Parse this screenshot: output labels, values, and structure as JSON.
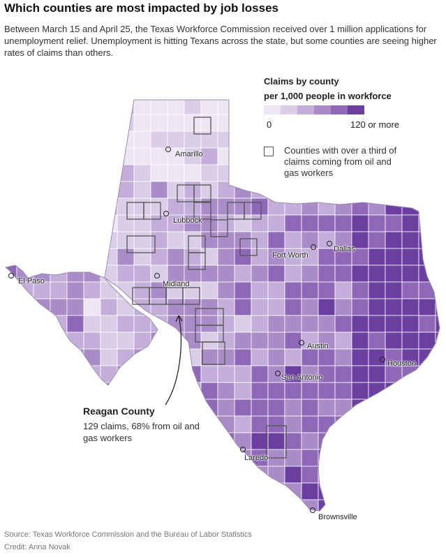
{
  "header": {
    "title": "Which counties are most impacted by job losses",
    "subtitle": "Between March 15 and April 25, the Texas Workforce Commission received over 1 million applications for unemployment relief. Unemployment is hitting Texans across the state, but some counties are seeing higher rates of claims than others."
  },
  "legend": {
    "title_line1": "Claims by county",
    "title_line2": "per 1,000 people in workforce",
    "min_label": "0",
    "max_label": "120 or more",
    "colors": [
      "#ece7f2",
      "#d9cde8",
      "#c2aed9",
      "#a98bc8",
      "#8f68b7",
      "#6b3fa0"
    ],
    "oil_gas_label": "Counties with over a third of claims coming from oil and gas workers"
  },
  "cities": [
    {
      "name": "Amarillo"
    },
    {
      "name": "Lubbock"
    },
    {
      "name": "Fort Worth"
    },
    {
      "name": "Dallas"
    },
    {
      "name": "El Paso"
    },
    {
      "name": "Midland"
    },
    {
      "name": "Austin"
    },
    {
      "name": "Houston"
    },
    {
      "name": "San Antonio"
    },
    {
      "name": "Laredo"
    },
    {
      "name": "Brownsville"
    }
  ],
  "annotation": {
    "title": "Reagan County",
    "body": "129 claims, 68% from oil and gas workers"
  },
  "footer": {
    "source": "Source: Texas Workforce Commission and the Bureau of Labor Statistics",
    "credit": "Credit: Anna Novak"
  }
}
